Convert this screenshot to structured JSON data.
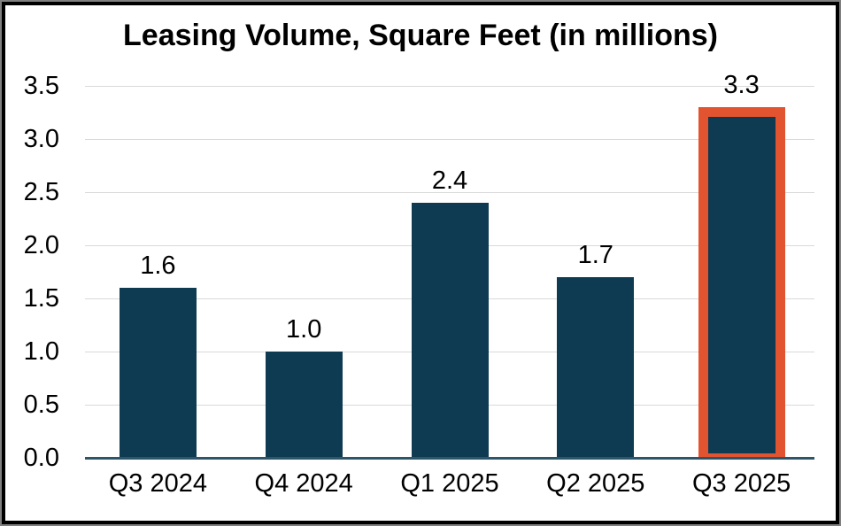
{
  "chart_data": {
    "type": "bar",
    "title": "Leasing Volume, Square Feet (in millions)",
    "categories": [
      "Q3 2024",
      "Q4 2024",
      "Q1 2025",
      "Q2 2025",
      "Q3 2025"
    ],
    "values": [
      1.6,
      1.0,
      2.4,
      1.7,
      3.3
    ],
    "data_labels": [
      "1.6",
      "1.0",
      "2.4",
      "1.7",
      "3.3"
    ],
    "y_ticks": [
      "0.0",
      "0.5",
      "1.0",
      "1.5",
      "2.0",
      "2.5",
      "3.0",
      "3.5"
    ],
    "ylim": [
      0,
      3.5
    ],
    "grid": "horizontal",
    "legend": "none",
    "highlight_index": 4,
    "highlighted_category": "Q3 2025",
    "colors": {
      "bar": "#0e3a52",
      "highlight_border": "#e2532f",
      "gridline": "#d9d9d9",
      "axis_line": "#2e566b",
      "text": "#000000",
      "frame_outer": "#808080",
      "frame_inner": "#000000"
    }
  }
}
